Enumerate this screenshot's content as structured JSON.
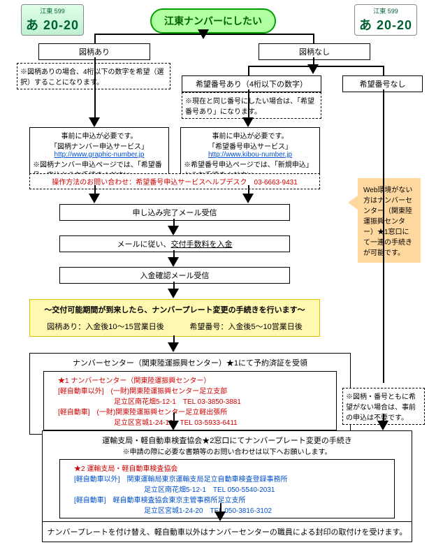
{
  "title": "江東ナンバーにしたい",
  "plates": {
    "top": "江東 599",
    "num": "あ 20-20"
  },
  "headers": {
    "designYes": "図柄あり",
    "designNo": "図柄なし",
    "wishYes": "希望番号あり（4桁以下の数字）",
    "wishNo": "希望番号なし"
  },
  "notes": {
    "designNote": "※図柄ありの場合、4桁以下の数字を希望（選択）することになります。",
    "wishNote": "※現在と同じ番号にしたい場合は、「希望番号あり」になります。"
  },
  "apply": {
    "pre": "事前に申込が必要です。",
    "svcDesign": "「図柄ナンバー申込サービス」",
    "urlDesign": "http://www.graphic-number.jp",
    "noteDesign": "※図柄ナンバー申込ページでは、「希望番号」申込からお手続きください。",
    "svcWish": "「希望番号申込サービス」",
    "urlWish": "http://www.kibou-number.jp",
    "noteWish": "※希望番号申込ページでは、「新規申込」からお手続きください。"
  },
  "help": "操作方法のお問い合わせ：希望番号申込サービスヘルプデスク　03-6663-9431",
  "steps": {
    "mail1": "申し込み完了メール受信",
    "pay": "メールに従い、交付手数料を入金",
    "mail2": "入金確認メール受信"
  },
  "period": {
    "head": "～交付可能期間が到来したら、ナンバープレート変更の手続きを行います～",
    "d1": "図柄あり：入金後10～15営業日後",
    "d2": "希望番号：入金後5～10営業日後"
  },
  "center": {
    "head": "ナンバーセンター（関東陸運振興センター）★1にて予約済証を受領",
    "t1": "★1 ナンバーセンター（関東陸運振興センター）",
    "l1a": "[軽自動車以外]　(一財)関東陸運振興センター足立支部",
    "l1b": "足立区南花畑5-12-1　TEL 03-3850-3881",
    "l2a": "[軽自動車]　(一財)関東陸運振興センター足立軽出張所",
    "l2b": "足立区宮城1-24-12　TEL 03-5933-6411"
  },
  "noWish": "※図柄・番号ともに希望がない場合は、事前の申込は不要です。",
  "callout": "Web環境がない方はナンバーセンター（関東陸運振興センター）★1窓口にて一連の手続きが可能です。",
  "branch": {
    "head1": "運輸支局・軽自動車検査協会★2窓口にてナンバープレート変更の手続き",
    "head2": "※申請の際に必要な書類等のお問い合わせは以下へお願いします。",
    "t": "★2 運輸支局・軽自動車検査協会",
    "l1a": "[軽自動車以外]　関東運輸局東京運輸支局足立自動車検査登録事務所",
    "l1b": "足立区南花畑5-12-1　TEL 050-5540-2031",
    "l2a": "[軽自動車]　軽自動車検査協会東京主管事務所足立支所",
    "l2b": "足立区宮城1-24-20　TEL 050-3816-3102"
  },
  "final": "ナンバープレートを付け替え、軽自動車以外はナンバーセンターの職員による封印の取付けを受けます。"
}
